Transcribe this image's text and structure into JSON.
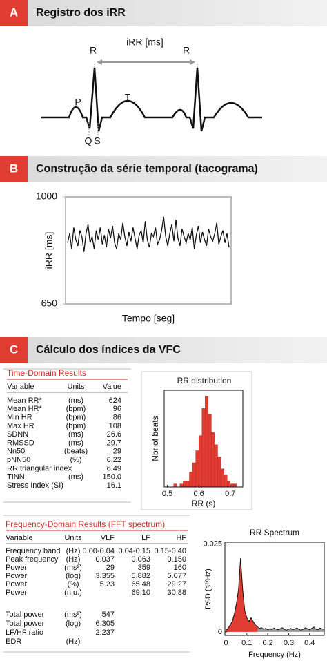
{
  "panel_a": {
    "letter": "A",
    "title": "Registro dos iRR",
    "interval": "iRR [ms]",
    "r_left": "R",
    "r_right": "R",
    "p": "P",
    "t": "T",
    "q": "Q",
    "s": "S"
  },
  "panel_b": {
    "letter": "B",
    "title": "Construção da série temporal (tacograma)"
  },
  "panel_c": {
    "letter": "C",
    "title": "Cálculo dos índices da VFC",
    "time_domain": {
      "title": "Time-Domain Results",
      "headers": [
        "Variable",
        "Units",
        "Value"
      ],
      "rows": [
        [
          "Mean RR*",
          "(ms)",
          "624"
        ],
        [
          "Mean HR*",
          "(bpm)",
          "96"
        ],
        [
          "Min HR",
          "(bpm)",
          "86"
        ],
        [
          "Max HR",
          "(bpm)",
          "108"
        ],
        [
          "SDNN",
          "(ms)",
          "26.6"
        ],
        [
          "RMSSD",
          "(ms)",
          "29.7"
        ],
        [
          "Nn50",
          "(beats)",
          "29"
        ],
        [
          "pNN50",
          "(%)",
          "6.22"
        ],
        [
          "RR triangular index",
          null,
          "6.49"
        ],
        [
          "TINN",
          "(ms)",
          "150.0"
        ],
        [
          "Stress Index (SI)",
          null,
          "16.1"
        ]
      ]
    },
    "frequency_domain": {
      "title": "Frequency-Domain Results (FFT spectrum)",
      "headers": [
        "Variable",
        "Units",
        "VLF",
        "LF",
        "HF"
      ],
      "rows": [
        [
          "Frequency band",
          "(Hz)",
          "0.00-0.04",
          "0.04-0.15",
          "0.15-0.40"
        ],
        [
          "Peak frequency",
          "(Hz)",
          "0.037",
          "0,063",
          "0.150"
        ],
        [
          "Power",
          "(ms²)",
          "29",
          "359",
          "160"
        ],
        [
          "Power",
          "(log)",
          "3.355",
          "5.882",
          "5.077"
        ],
        [
          "Power",
          "(%)",
          "5.23",
          "65.48",
          "29.27"
        ],
        [
          "Power",
          "(n.u.)",
          null,
          "69.10",
          "30.88"
        ],
        [
          "Total power",
          "(ms²)",
          "547",
          null,
          null
        ],
        [
          "Total power",
          "(log)",
          "6.305",
          null,
          null
        ],
        [
          "LF/HF ratio",
          null,
          "2.237",
          null,
          null
        ],
        [
          "EDR",
          "(Hz)",
          null,
          null,
          null
        ]
      ]
    }
  },
  "chart_data": [
    {
      "type": "line",
      "ylabel": "iRR [ms]",
      "xlabel": "Tempo [seg]",
      "color": "#111111",
      "ylim": [
        650,
        1000
      ],
      "yticks": [
        650,
        1000
      ],
      "values": [
        850,
        880,
        830,
        900,
        860,
        840,
        890,
        870,
        820,
        880,
        910,
        850,
        870,
        830,
        890,
        860,
        900,
        845,
        875,
        835,
        895,
        865,
        905,
        850,
        830,
        880,
        860,
        915,
        870,
        840,
        885,
        855,
        900,
        865,
        830,
        875,
        890,
        850,
        920,
        860,
        835,
        880,
        870,
        900,
        845,
        860,
        890,
        935,
        870,
        840,
        880,
        910,
        855,
        925,
        865,
        840,
        895,
        870,
        850,
        880,
        860,
        900,
        830,
        875,
        905,
        850,
        885,
        860,
        840,
        895,
        870,
        855,
        880,
        915,
        845,
        870,
        890,
        850,
        880,
        835
      ]
    },
    {
      "type": "histogram",
      "title": "RR distribution",
      "xlabel": "RR (s)",
      "ylabel": "Nbr of beats",
      "color": "#e03c31",
      "bins": [
        0.52,
        0.53,
        0.54,
        0.55,
        0.56,
        0.57,
        0.58,
        0.59,
        0.6,
        0.61,
        0.62,
        0.63,
        0.64,
        0.65,
        0.66,
        0.67,
        0.68,
        0.69,
        0.7,
        0.71,
        0.72
      ],
      "values": [
        1,
        0,
        1,
        2,
        2,
        5,
        8,
        12,
        17,
        26,
        30,
        24,
        18,
        14,
        10,
        6,
        4,
        2,
        1,
        1
      ],
      "xlim": [
        0.49,
        0.74
      ],
      "xticks": [
        0.5,
        0.6,
        0.7
      ],
      "ylim": [
        0,
        32
      ]
    },
    {
      "type": "area",
      "title": "RR Spectrum",
      "xlabel": "Frequency (Hz)",
      "ylabel": "PSD (s²/Hz)",
      "xlim": [
        -0.005,
        0.47
      ],
      "xticks": [
        0,
        0.1,
        0.2,
        0.3,
        0.4
      ],
      "ylim": [
        -0.001,
        0.0255
      ],
      "yticks": [
        0,
        0.025
      ],
      "series": [
        {
          "color": "#e03c31",
          "x": [
            0,
            0.01,
            0.02,
            0.03,
            0.04,
            0.05,
            0.06,
            0.07,
            0.08,
            0.09,
            0.1,
            0.11,
            0.12,
            0.13,
            0.14,
            0.15
          ],
          "values": [
            0.0005,
            0.001,
            0.002,
            0.003,
            0.005,
            0.008,
            0.012,
            0.021,
            0.012,
            0.006,
            0.004,
            0.003,
            0.004,
            0.003,
            0.002,
            0.0015
          ]
        },
        {
          "color": "#999999",
          "x": [
            0.15,
            0.16,
            0.17,
            0.18,
            0.19,
            0.2,
            0.21,
            0.22,
            0.23,
            0.24,
            0.25,
            0.26,
            0.27,
            0.28,
            0.29,
            0.3,
            0.31,
            0.32,
            0.33,
            0.34,
            0.35,
            0.36,
            0.37,
            0.38,
            0.39,
            0.4,
            0.41,
            0.42,
            0.43,
            0.44,
            0.45,
            0.46,
            0.47
          ],
          "values": [
            0.0015,
            0.001,
            0.0012,
            0.0008,
            0.001,
            0.0006,
            0.0009,
            0.0007,
            0.0011,
            0.0008,
            0.0006,
            0.0009,
            0.0012,
            0.0007,
            0.0005,
            0.0008,
            0.001,
            0.0006,
            0.0009,
            0.0011,
            0.0007,
            0.0005,
            0.0008,
            0.0012,
            0.0009,
            0.0006,
            0.001,
            0.0014,
            0.0008,
            0.0006,
            0.0011,
            0.0009,
            0.0007
          ]
        }
      ]
    }
  ]
}
